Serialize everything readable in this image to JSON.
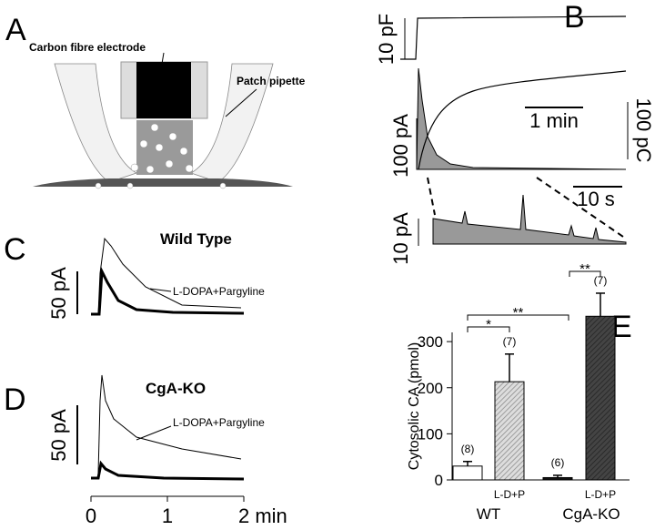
{
  "figure": {
    "panels": [
      "A",
      "B",
      "C",
      "D",
      "E"
    ],
    "panel_a": {
      "electrode_label": "Carbon fibre electrode",
      "pipette_label": "Patch pipette"
    },
    "panel_b": {
      "capacitance_scale": "10 pF",
      "current_scale": "100 pA",
      "time_scale": "1 min",
      "charge_scale": "100 pC",
      "zoom_time_scale": "10 s",
      "zoom_current_scale": "10 pA"
    },
    "panel_c": {
      "title": "Wild Type",
      "trace_label": "L-DOPA+Pargyline",
      "current_scale": "50 pA"
    },
    "panel_d": {
      "title": "CgA-KO",
      "trace_label": "L-DOPA+Pargyline",
      "current_scale": "50 pA"
    },
    "time_axis": {
      "xlim": [
        0,
        2
      ],
      "xticks": [
        0,
        1,
        {
          "value": 2,
          "label": "2 min"
        }
      ]
    }
  },
  "chart_data": {
    "type": "bar",
    "ylabel": "Cytosolic CA (pmol)",
    "categories": [
      null,
      "L-D+P",
      null,
      "L-D+P"
    ],
    "groups": [
      "WT",
      "CgA-KO"
    ],
    "values": [
      30,
      213,
      5,
      355
    ],
    "errors": [
      10,
      60,
      5,
      50
    ],
    "n_labels": [
      "(8)",
      "(7)",
      "(6)",
      "(7)"
    ],
    "colors": [
      "#ffffff",
      "#bdbdbd",
      "#111111",
      "#555555"
    ],
    "significance": [
      "*",
      "**",
      "**"
    ],
    "ylim": [
      0,
      320
    ],
    "yticks": [
      0,
      100,
      200,
      300
    ]
  }
}
